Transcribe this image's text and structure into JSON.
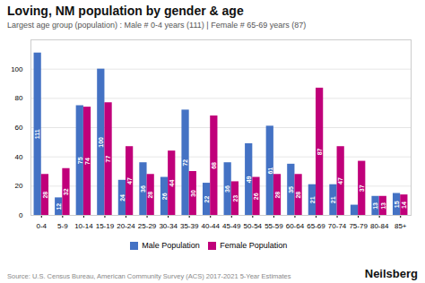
{
  "chart_data": {
    "type": "bar",
    "title": "Loving, NM population by gender & age",
    "subtitle": "Largest age group (population) : Male # 0-4 years (111) | Female # 65-69 years (87)",
    "source": "Source: U.S. Census Bureau, American Community Survey (ACS) 2017-2021 5-Year Estimates",
    "brand": "Neilsberg",
    "categories": [
      "0-4",
      "5-9",
      "10-14",
      "15-19",
      "20-24",
      "25-29",
      "30-34",
      "35-39",
      "40-44",
      "45-49",
      "50-54",
      "55-59",
      "60-64",
      "65-69",
      "70-74",
      "75-79",
      "80-84",
      "85+"
    ],
    "series": [
      {
        "name": "Male Population",
        "color": "#4472c4",
        "values": [
          111,
          12,
          75,
          100,
          24,
          36,
          26,
          72,
          22,
          36,
          49,
          61,
          35,
          21,
          21,
          7,
          13,
          15
        ],
        "value_labels": [
          "111",
          "12",
          "75",
          "100",
          "24",
          "36",
          "26",
          "72",
          "22",
          "36",
          "49",
          "61",
          "35",
          "21",
          "21",
          null,
          "13",
          "15"
        ]
      },
      {
        "name": "Female Population",
        "color": "#c0007a",
        "values": [
          28,
          32,
          74,
          77,
          47,
          28,
          44,
          30,
          68,
          23,
          26,
          28,
          28,
          87,
          47,
          37,
          13,
          14
        ],
        "value_labels": [
          "28",
          "32",
          "74",
          "77",
          "47",
          "28",
          "44",
          "30",
          "68",
          "23",
          "26",
          "28",
          "28",
          "87",
          "47",
          "37",
          "13",
          "14"
        ]
      }
    ],
    "ylim": [
      0,
      120
    ],
    "yticks": [
      0,
      20,
      40,
      60,
      80,
      100
    ],
    "grid": true,
    "data_labels": true,
    "legend": "bottom"
  }
}
